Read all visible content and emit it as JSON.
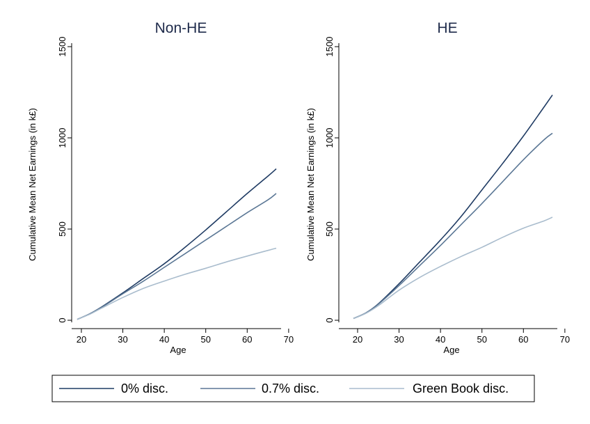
{
  "chart_data": [
    {
      "type": "line",
      "title": "Non-HE",
      "xlabel": "Age",
      "ylabel": "Cumulative Mean Net Earnings (in k£)",
      "xlim": [
        18,
        70
      ],
      "ylim": [
        0,
        1500
      ],
      "xticks": [
        "20",
        "30",
        "40",
        "50",
        "60",
        "70"
      ],
      "yticks": [
        "0",
        "500",
        "1000",
        "1500"
      ],
      "x": [
        19,
        22,
        25,
        30,
        35,
        40,
        45,
        50,
        55,
        60,
        65,
        67
      ],
      "series": [
        {
          "name": "0% disc.",
          "color": "#1f3b63",
          "values": [
            5,
            35,
            75,
            150,
            230,
            310,
            400,
            495,
            595,
            695,
            790,
            830
          ]
        },
        {
          "name": "0.7% disc.",
          "color": "#5b7795",
          "values": [
            5,
            35,
            73,
            145,
            215,
            290,
            365,
            440,
            515,
            590,
            660,
            695
          ]
        },
        {
          "name": "Green Book disc.",
          "color": "#a9bccd",
          "values": [
            5,
            33,
            68,
            125,
            175,
            215,
            252,
            285,
            320,
            352,
            383,
            395
          ]
        }
      ]
    },
    {
      "type": "line",
      "title": "HE",
      "xlabel": "Age",
      "ylabel": "Cumulative Mean Net Earnings (in k£)",
      "xlim": [
        18,
        70
      ],
      "ylim": [
        0,
        1500
      ],
      "xticks": [
        "20",
        "30",
        "40",
        "50",
        "60",
        "70"
      ],
      "yticks": [
        "0",
        "500",
        "1000",
        "1500"
      ],
      "x": [
        19,
        22,
        25,
        30,
        35,
        40,
        45,
        50,
        55,
        60,
        65,
        67
      ],
      "series": [
        {
          "name": "0% disc.",
          "color": "#1f3b63",
          "values": [
            10,
            40,
            90,
            200,
            320,
            440,
            570,
            715,
            860,
            1010,
            1170,
            1235
          ]
        },
        {
          "name": "0.7% disc.",
          "color": "#5b7795",
          "values": [
            10,
            40,
            88,
            190,
            300,
            410,
            525,
            640,
            760,
            880,
            990,
            1025
          ]
        },
        {
          "name": "Green Book disc.",
          "color": "#a9bccd",
          "values": [
            10,
            38,
            80,
            165,
            235,
            295,
            350,
            400,
            455,
            505,
            545,
            565
          ]
        }
      ]
    }
  ],
  "legend": {
    "items": [
      {
        "label": "0% disc.",
        "color": "#1f3b63"
      },
      {
        "label": "0.7% disc.",
        "color": "#5b7795"
      },
      {
        "label": "Green Book disc.",
        "color": "#a9bccd"
      }
    ]
  }
}
